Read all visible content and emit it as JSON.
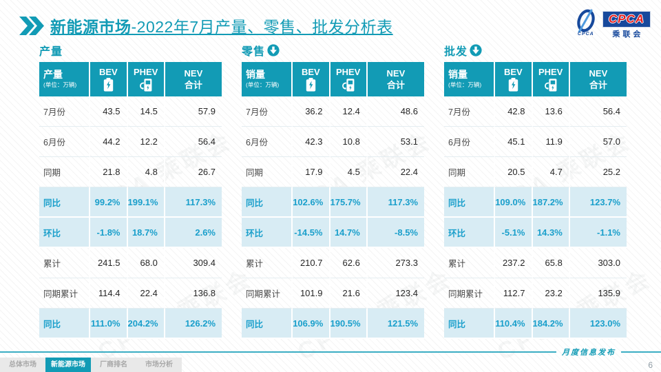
{
  "title": {
    "highlight": "新能源市场",
    "rest": "-2022年7月产量、零售、批发分析表"
  },
  "logo": {
    "caption": "CPCA",
    "acronym": "CPCA",
    "cn_name": "乘联会"
  },
  "watermark": "CPCA 乘联会",
  "columns": {
    "bev": "BEV",
    "phev": "PHEV",
    "nev_line1": "NEV",
    "nev_line2": "合计"
  },
  "tables": [
    {
      "section": "产量",
      "arrow": false,
      "measure": "产量",
      "unit": "(单位：万辆)",
      "rows": [
        {
          "label": "7月份",
          "values": [
            "43.5",
            "14.5",
            "57.9"
          ],
          "highlight": false
        },
        {
          "label": "6月份",
          "values": [
            "44.2",
            "12.2",
            "56.4"
          ],
          "highlight": false
        },
        {
          "label": "同期",
          "values": [
            "21.8",
            "4.8",
            "26.7"
          ],
          "highlight": false
        },
        {
          "label": "同比",
          "values": [
            "99.2%",
            "199.1%",
            "117.3%"
          ],
          "highlight": true
        },
        {
          "label": "环比",
          "values": [
            "-1.8%",
            "18.7%",
            "2.6%"
          ],
          "highlight": true
        },
        {
          "label": "累计",
          "values": [
            "241.5",
            "68.0",
            "309.4"
          ],
          "highlight": false
        },
        {
          "label": "同期累计",
          "values": [
            "114.4",
            "22.4",
            "136.8"
          ],
          "highlight": false
        },
        {
          "label": "同比",
          "values": [
            "111.0%",
            "204.2%",
            "126.2%"
          ],
          "highlight": true
        }
      ]
    },
    {
      "section": "零售",
      "arrow": true,
      "measure": "销量",
      "unit": "(单位：万辆)",
      "rows": [
        {
          "label": "7月份",
          "values": [
            "36.2",
            "12.4",
            "48.6"
          ],
          "highlight": false
        },
        {
          "label": "6月份",
          "values": [
            "42.3",
            "10.8",
            "53.1"
          ],
          "highlight": false
        },
        {
          "label": "同期",
          "values": [
            "17.9",
            "4.5",
            "22.4"
          ],
          "highlight": false
        },
        {
          "label": "同比",
          "values": [
            "102.6%",
            "175.7%",
            "117.3%"
          ],
          "highlight": true
        },
        {
          "label": "环比",
          "values": [
            "-14.5%",
            "14.7%",
            "-8.5%"
          ],
          "highlight": true
        },
        {
          "label": "累计",
          "values": [
            "210.7",
            "62.6",
            "273.3"
          ],
          "highlight": false
        },
        {
          "label": "同期累计",
          "values": [
            "101.9",
            "21.6",
            "123.4"
          ],
          "highlight": false
        },
        {
          "label": "同比",
          "values": [
            "106.9%",
            "190.5%",
            "121.5%"
          ],
          "highlight": true
        }
      ]
    },
    {
      "section": "批发",
      "arrow": true,
      "measure": "销量",
      "unit": "(单位：万辆)",
      "rows": [
        {
          "label": "7月份",
          "values": [
            "42.8",
            "13.6",
            "56.4"
          ],
          "highlight": false
        },
        {
          "label": "6月份",
          "values": [
            "45.1",
            "11.9",
            "57.0"
          ],
          "highlight": false
        },
        {
          "label": "同期",
          "values": [
            "20.5",
            "4.7",
            "25.2"
          ],
          "highlight": false
        },
        {
          "label": "同比",
          "values": [
            "109.0%",
            "187.2%",
            "123.7%"
          ],
          "highlight": true
        },
        {
          "label": "环比",
          "values": [
            "-5.1%",
            "14.3%",
            "-1.1%"
          ],
          "highlight": true
        },
        {
          "label": "累计",
          "values": [
            "237.2",
            "65.8",
            "303.0"
          ],
          "highlight": false
        },
        {
          "label": "同期累计",
          "values": [
            "112.7",
            "23.2",
            "135.9"
          ],
          "highlight": false
        },
        {
          "label": "同比",
          "values": [
            "110.4%",
            "184.2%",
            "123.0%"
          ],
          "highlight": true
        }
      ]
    }
  ],
  "footer": {
    "tabs": [
      {
        "label": "总体市场",
        "active": false
      },
      {
        "label": "新能源市场",
        "active": true
      },
      {
        "label": "厂商排名",
        "active": false
      },
      {
        "label": "市场分析",
        "active": false
      }
    ],
    "release_note": "月度信息发布",
    "page": "6"
  },
  "colors": {
    "accent": "#129bb5",
    "highlight_bg": "#d8ecf4",
    "percent_text": "#1a9fcb",
    "logo_blue": "#17499c",
    "logo_red": "#e21b1b"
  }
}
